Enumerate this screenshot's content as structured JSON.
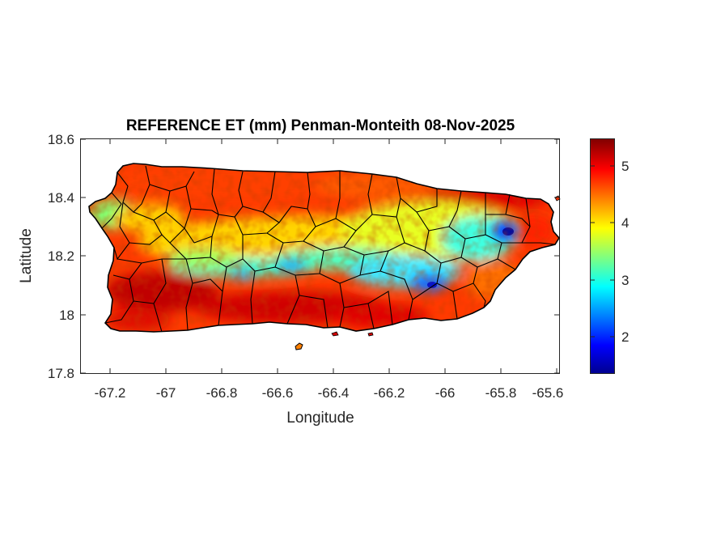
{
  "title": "REFERENCE ET (mm) Penman-Monteith 08-Nov-2025",
  "xlabel": "Longitude",
  "ylabel": "Latitude",
  "x_ticks": [
    "-67.2",
    "-67",
    "-66.8",
    "-66.6",
    "-66.4",
    "-66.2",
    "-66",
    "-65.8",
    "-65.6"
  ],
  "y_ticks": [
    "18.6",
    "18.4",
    "18.2",
    "18",
    "17.8"
  ],
  "colorbar_ticks": [
    "5",
    "4",
    "3",
    "2"
  ],
  "colors": {
    "colormap": [
      "#00008f",
      "#0000ff",
      "#00ffff",
      "#ffff00",
      "#ff0000",
      "#800000"
    ],
    "boundary": "#000000"
  },
  "chart_data": {
    "type": "heatmap",
    "title": "REFERENCE ET (mm) Penman-Monteith 08-Nov-2025",
    "xlabel": "Longitude",
    "ylabel": "Latitude",
    "xlim": [
      -67.3,
      -65.58
    ],
    "ylim": [
      17.8,
      18.6
    ],
    "colorbar": {
      "range": [
        1.4,
        5.5
      ],
      "ticks": [
        2,
        3,
        4,
        5
      ],
      "colormap": "jet"
    },
    "region": "Puerto Rico",
    "features": [
      {
        "description": "central mountain band low ET",
        "value_range": [
          2.5,
          3.5
        ]
      },
      {
        "description": "minimum near lon -65.78 lat 18.28",
        "value": 1.5
      },
      {
        "description": "minimum near lon -66.05 lat 18.12",
        "value": 2.0
      },
      {
        "description": "south coast high ET",
        "value_range": [
          5.0,
          5.5
        ]
      },
      {
        "description": "north coast",
        "value_range": [
          4.5,
          5.0
        ]
      }
    ],
    "grid": false
  }
}
